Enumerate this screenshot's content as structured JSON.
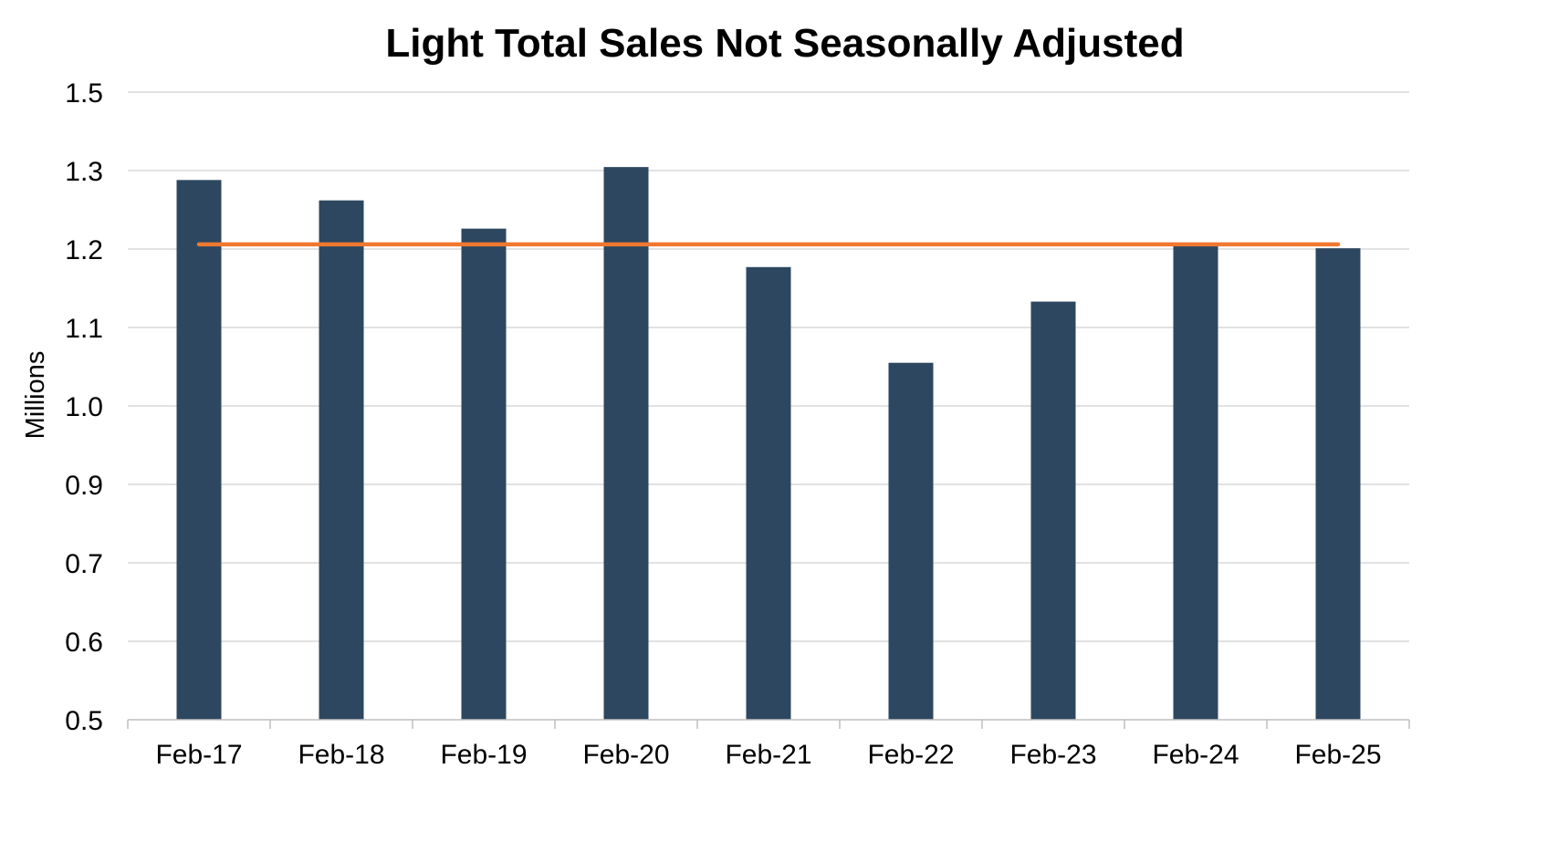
{
  "chart_data": {
    "type": "bar",
    "title": "Light Total Sales Not Seasonally Adjusted",
    "xlabel": "",
    "ylabel": "Millions",
    "categories": [
      "Feb-17",
      "Feb-18",
      "Feb-19",
      "Feb-20",
      "Feb-21",
      "Feb-22",
      "Feb-23",
      "Feb-24",
      "Feb-25"
    ],
    "series": [
      {
        "type": "bar",
        "values": [
          1.288,
          1.262,
          1.226,
          1.309,
          1.177,
          1.055,
          1.133,
          1.206,
          1.201
        ],
        "color": "#2e4760"
      },
      {
        "type": "line",
        "values": [
          1.206,
          1.206,
          1.206,
          1.206,
          1.206,
          1.206,
          1.206,
          1.206,
          1.206
        ],
        "color": "#f07830"
      }
    ],
    "y_ticks": [
      "1.5",
      "1.3",
      "1.2",
      "1.1",
      "1.0",
      "0.9",
      "0.7",
      "0.6",
      "0.5"
    ],
    "ylim_displayed": [
      0.5,
      1.5
    ],
    "grid": true,
    "legend": "none"
  }
}
